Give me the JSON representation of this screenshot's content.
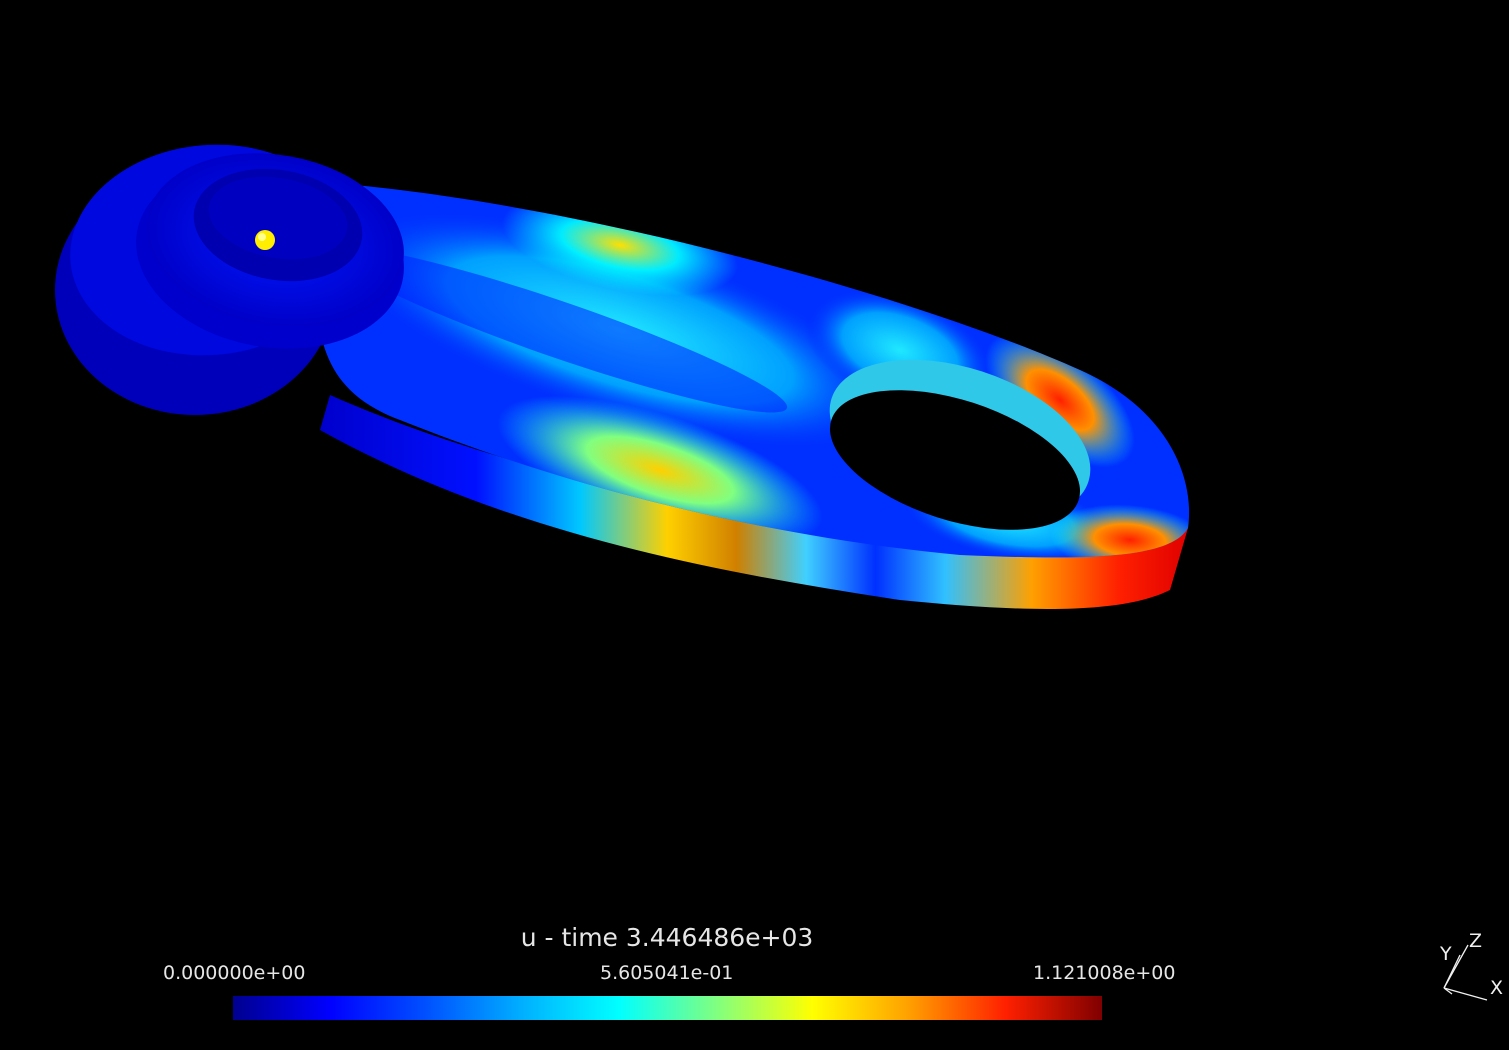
{
  "scene": {
    "mesh": "lever-arm-part",
    "probe_marker_color": "#ffee00"
  },
  "legend": {
    "title": "u - time 3.446486e+03",
    "min_label": "0.000000e+00",
    "mid_label": "5.605041e-01",
    "max_label": "1.121008e+00",
    "colormap": [
      "#00008f",
      "#0000ff",
      "#0050ff",
      "#00b0ff",
      "#00ffff",
      "#80ff80",
      "#ffff00",
      "#ffa000",
      "#ff2000",
      "#800000"
    ]
  },
  "axes": {
    "x_label": "X",
    "y_label": "Y",
    "z_label": "Z"
  }
}
